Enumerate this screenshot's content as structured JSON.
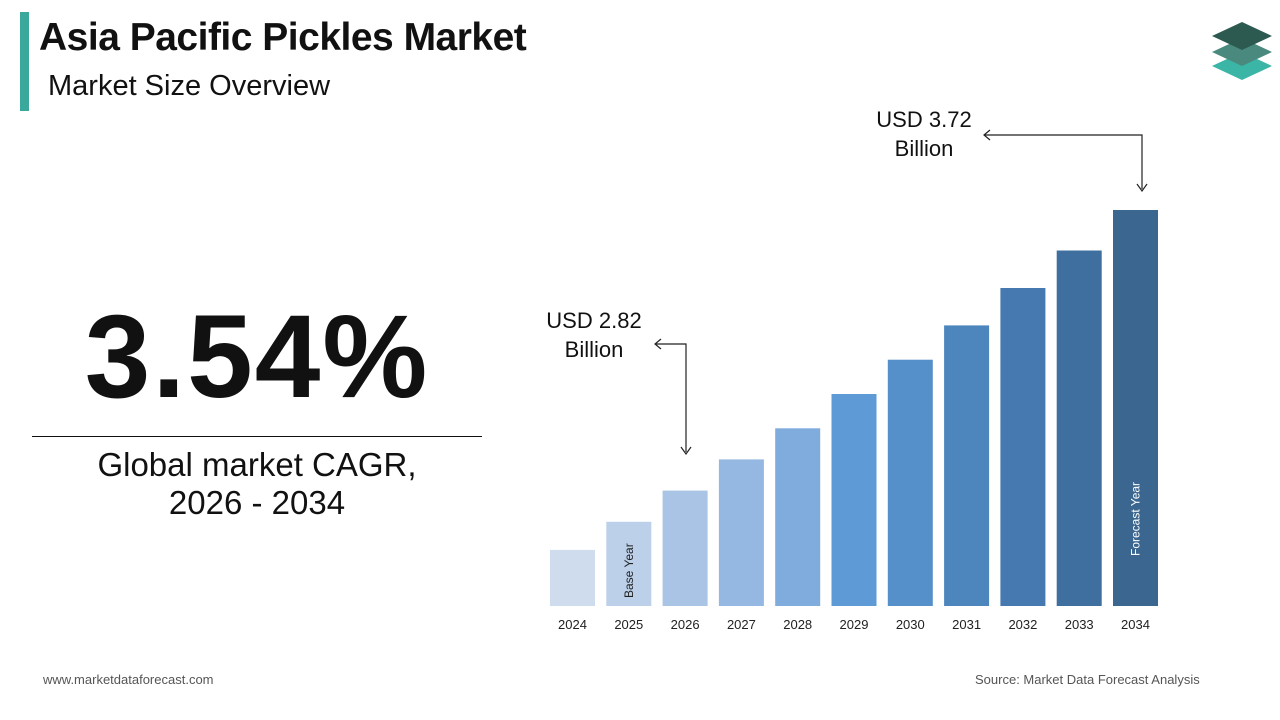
{
  "header": {
    "title": "Asia Pacific Pickles Market",
    "subtitle": "Market Size Overview"
  },
  "colors": {
    "accent": "#3aa89a",
    "logo_top": "#2d5a50",
    "logo_mid": "#4a8a7e",
    "logo_bottom": "#3ab5a6"
  },
  "logo": {
    "icon": "stacked-layers-logo-icon"
  },
  "cagr": {
    "value": "3.54%",
    "label_line1": "Global market CAGR,",
    "label_line2": "2026 - 2034"
  },
  "annotations": {
    "start_line1": "USD 2.82",
    "start_line2": "Billion",
    "end_line1": "USD 3.72",
    "end_line2": "Billion"
  },
  "chart_data": {
    "type": "bar",
    "categories": [
      "2024",
      "2025",
      "2026",
      "2027",
      "2028",
      "2029",
      "2030",
      "2031",
      "2032",
      "2033",
      "2034"
    ],
    "values": [
      2.63,
      2.72,
      2.82,
      2.92,
      3.02,
      3.13,
      3.24,
      3.35,
      3.47,
      3.59,
      3.72
    ],
    "bar_colors": [
      "#cfdcee",
      "#bcd0ea",
      "#a9c4e5",
      "#94b8e1",
      "#7fabdd",
      "#5e9bd6",
      "#5690ca",
      "#4d86bd",
      "#4679af",
      "#3f6f9f",
      "#3a6690"
    ],
    "bar_labels": [
      {
        "category": "2025",
        "text": "Base Year"
      },
      {
        "category": "2034",
        "text": "Forecast Year"
      }
    ],
    "ylim": [
      2.45,
      3.72
    ],
    "grid": false,
    "legend": "none"
  },
  "footer": {
    "website": "www.marketdataforecast.com",
    "source": "Source: Market Data Forecast Analysis"
  }
}
